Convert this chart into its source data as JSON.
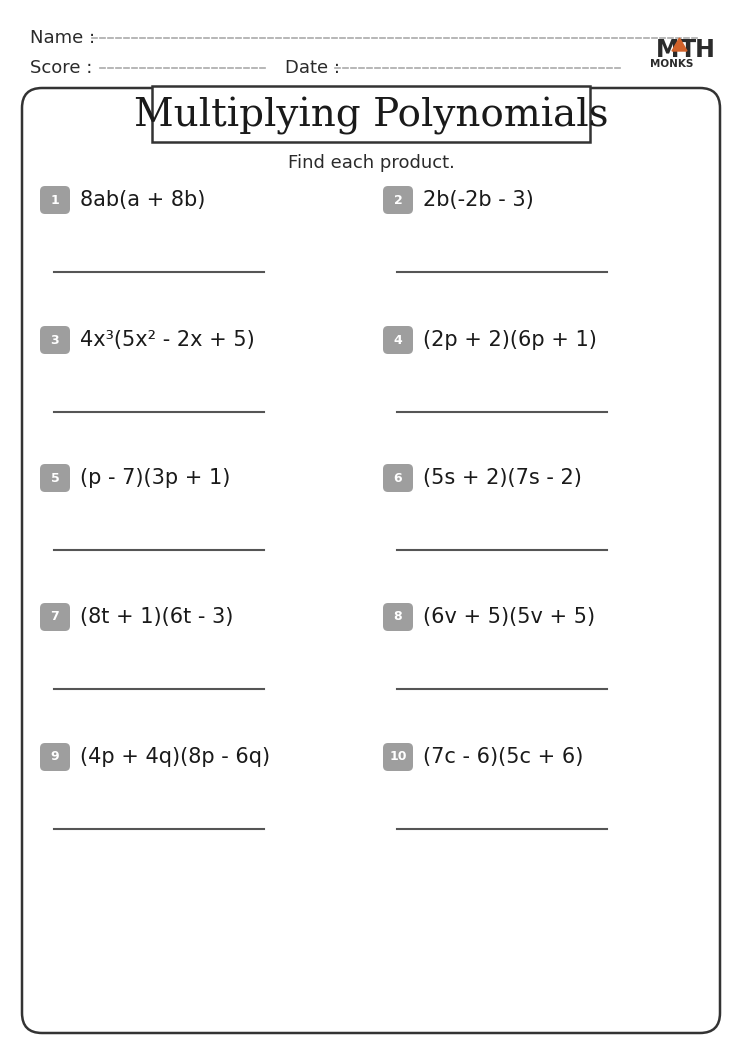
{
  "title": "Multiplying Polynomials",
  "subtitle": "Find each product.",
  "name_label": "Name :",
  "score_label": "Score :",
  "date_label": "Date :",
  "problems": [
    {
      "num": "1",
      "expr": "8ab(a + 8b)"
    },
    {
      "num": "2",
      "expr": "2b(-2b - 3)"
    },
    {
      "num": "3",
      "expr": "4x³(5x² - 2x + 5)"
    },
    {
      "num": "4",
      "expr": "(2p + 2)(6p + 1)"
    },
    {
      "num": "5",
      "expr": "(p - 7)(3p + 1)"
    },
    {
      "num": "6",
      "expr": "(5s + 2)(7s - 2)"
    },
    {
      "num": "7",
      "expr": "(8t + 1)(6t - 3)"
    },
    {
      "num": "8",
      "expr": "(6v + 5)(5v + 5)"
    },
    {
      "num": "9",
      "expr": "(4p + 4q)(8p - 6q)"
    },
    {
      "num": "10",
      "expr": "(7c - 6)(5c + 6)"
    }
  ],
  "bg_color": "#ffffff",
  "badge_color": "#9e9e9e",
  "badge_text_color": "#ffffff",
  "border_color": "#333333",
  "title_font_size": 28,
  "subtitle_font_size": 13,
  "problem_font_size": 15,
  "header_font_size": 13,
  "logo_orange": "#d2622a",
  "logo_text_color": "#2b2b2b"
}
